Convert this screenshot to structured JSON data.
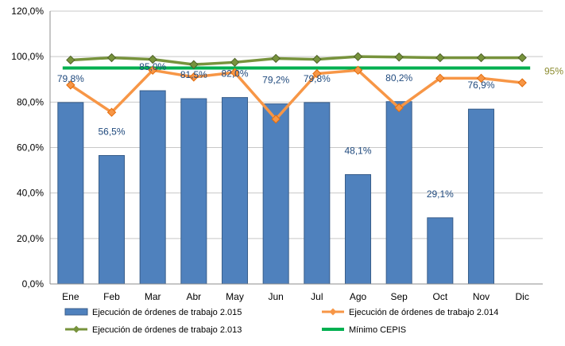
{
  "chart_data": {
    "type": "bar",
    "categories": [
      "Ene",
      "Feb",
      "Mar",
      "Abr",
      "May",
      "Jun",
      "Jul",
      "Ago",
      "Sep",
      "Oct",
      "Nov",
      "Dic"
    ],
    "ylim": [
      0,
      120
    ],
    "yticks": [
      "0,0%",
      "20,0%",
      "40,0%",
      "60,0%",
      "80,0%",
      "100,0%",
      "120,0%"
    ],
    "grid": true,
    "legend_position": "bottom",
    "bar_series": {
      "name": "Ejecución de órdenes de trabajo 2.015",
      "color": "#4f81bd",
      "values": [
        79.8,
        56.5,
        85.0,
        81.5,
        82.0,
        79.2,
        79.8,
        48.1,
        80.2,
        29.1,
        76.9,
        null
      ],
      "labels": [
        "79,8%",
        "56,5%",
        "85,0%",
        "81,5%",
        "82,0%",
        "79,2%",
        "79,8%",
        "48,1%",
        "80,2%",
        "29,1%",
        "76,9%",
        ""
      ]
    },
    "line_series": [
      {
        "name": "Ejecución de órdenes de trabajo 2.014",
        "color": "#f79646",
        "values": [
          87.5,
          75.5,
          94.0,
          91.0,
          93.0,
          72.5,
          92.5,
          94.0,
          77.5,
          90.5,
          90.5,
          88.5
        ]
      },
      {
        "name": "Ejecución de órdenes de trabajo 2.013",
        "color": "#77933c",
        "values": [
          98.5,
          99.5,
          98.8,
          96.5,
          97.5,
          99.2,
          98.8,
          100.0,
          99.8,
          99.5,
          99.5,
          99.5
        ]
      }
    ],
    "reference_line": {
      "name": "Mínimo CEPIS",
      "value": 95,
      "label": "95%",
      "color": "#00b050"
    }
  }
}
